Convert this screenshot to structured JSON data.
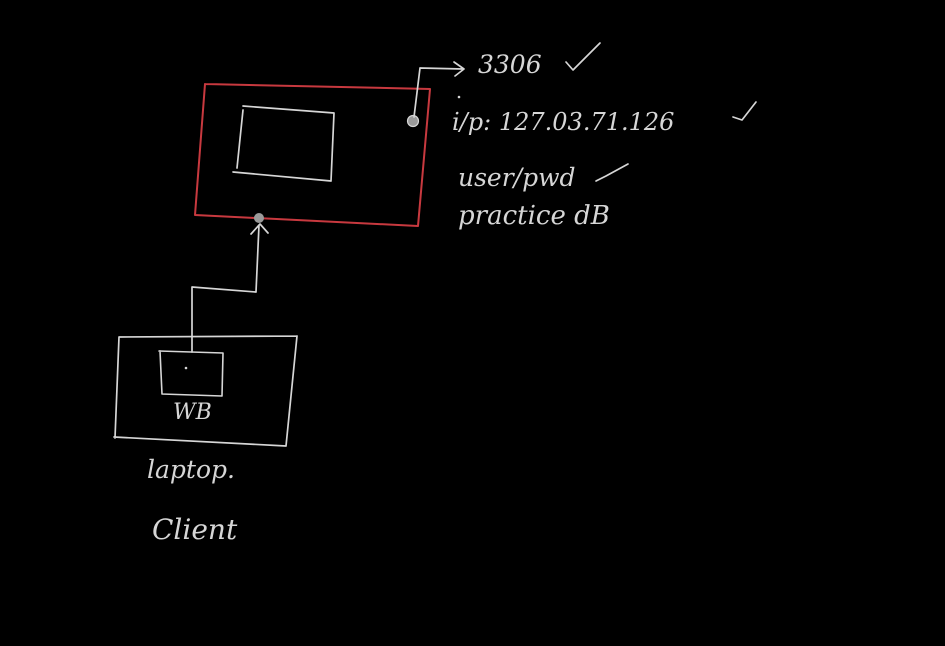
{
  "colors": {
    "background": "#000000",
    "ink": "#d6d6d6",
    "server_border": "#c8393f",
    "port_dot": "#9a9a9a"
  },
  "server": {
    "port": "3306",
    "ip": "i/p: 127.03.71.126",
    "credentials": "user/pwd",
    "database": "practice dB"
  },
  "client": {
    "app_label": "WB",
    "device": "laptop.",
    "role": "Client"
  },
  "icons": {
    "checkmark": "check-icon",
    "port_arrow": "arrow-right-icon",
    "connection_arrow": "arrow-up-icon"
  }
}
